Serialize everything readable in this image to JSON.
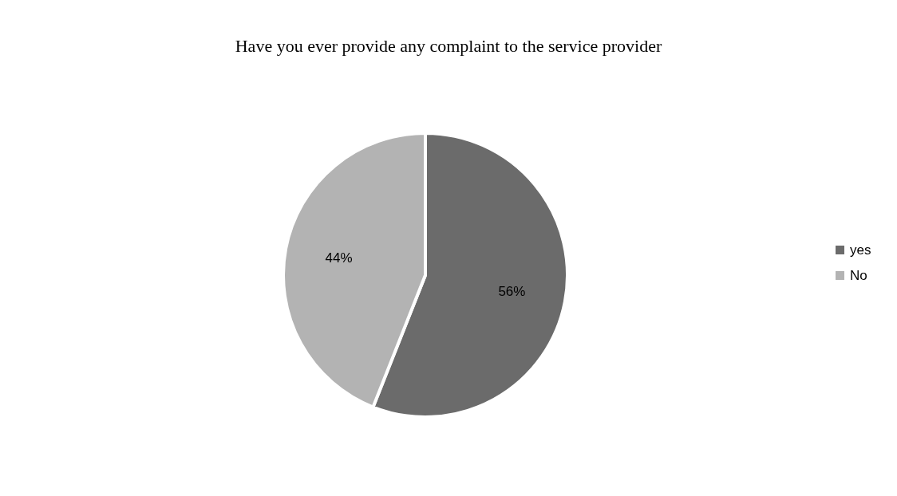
{
  "chart_data": {
    "type": "pie",
    "title": "Have you ever provide any complaint to the service provider",
    "categories": [
      "yes",
      "No"
    ],
    "values": [
      56,
      44
    ],
    "colors": [
      "#6b6b6b",
      "#b3b3b3"
    ],
    "value_labels": [
      "56%",
      "44%"
    ],
    "legend": "right"
  }
}
